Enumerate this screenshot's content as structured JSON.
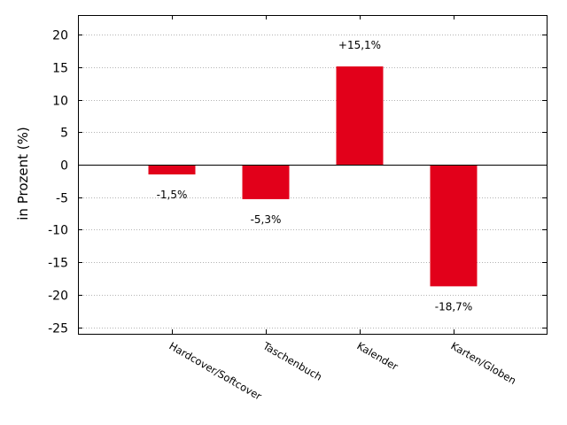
{
  "chart_data": {
    "type": "bar",
    "title": "",
    "xlabel": "",
    "ylabel": "in Prozent (%)",
    "categories": [
      "Hardcover/Softcover",
      "Taschenbuch",
      "Kalender",
      "Karten/Globen"
    ],
    "values": [
      -1.5,
      -5.3,
      15.1,
      -18.7
    ],
    "data_labels": [
      "-1,5%",
      "-5,3%",
      "+15,1%",
      "-18,7%"
    ],
    "ylim": [
      -26,
      23
    ],
    "yticks": [
      20,
      15,
      10,
      5,
      0,
      -5,
      -10,
      -15,
      -20,
      -25
    ],
    "grid": "horizontal dotted",
    "bar_color": "#e2001a"
  }
}
